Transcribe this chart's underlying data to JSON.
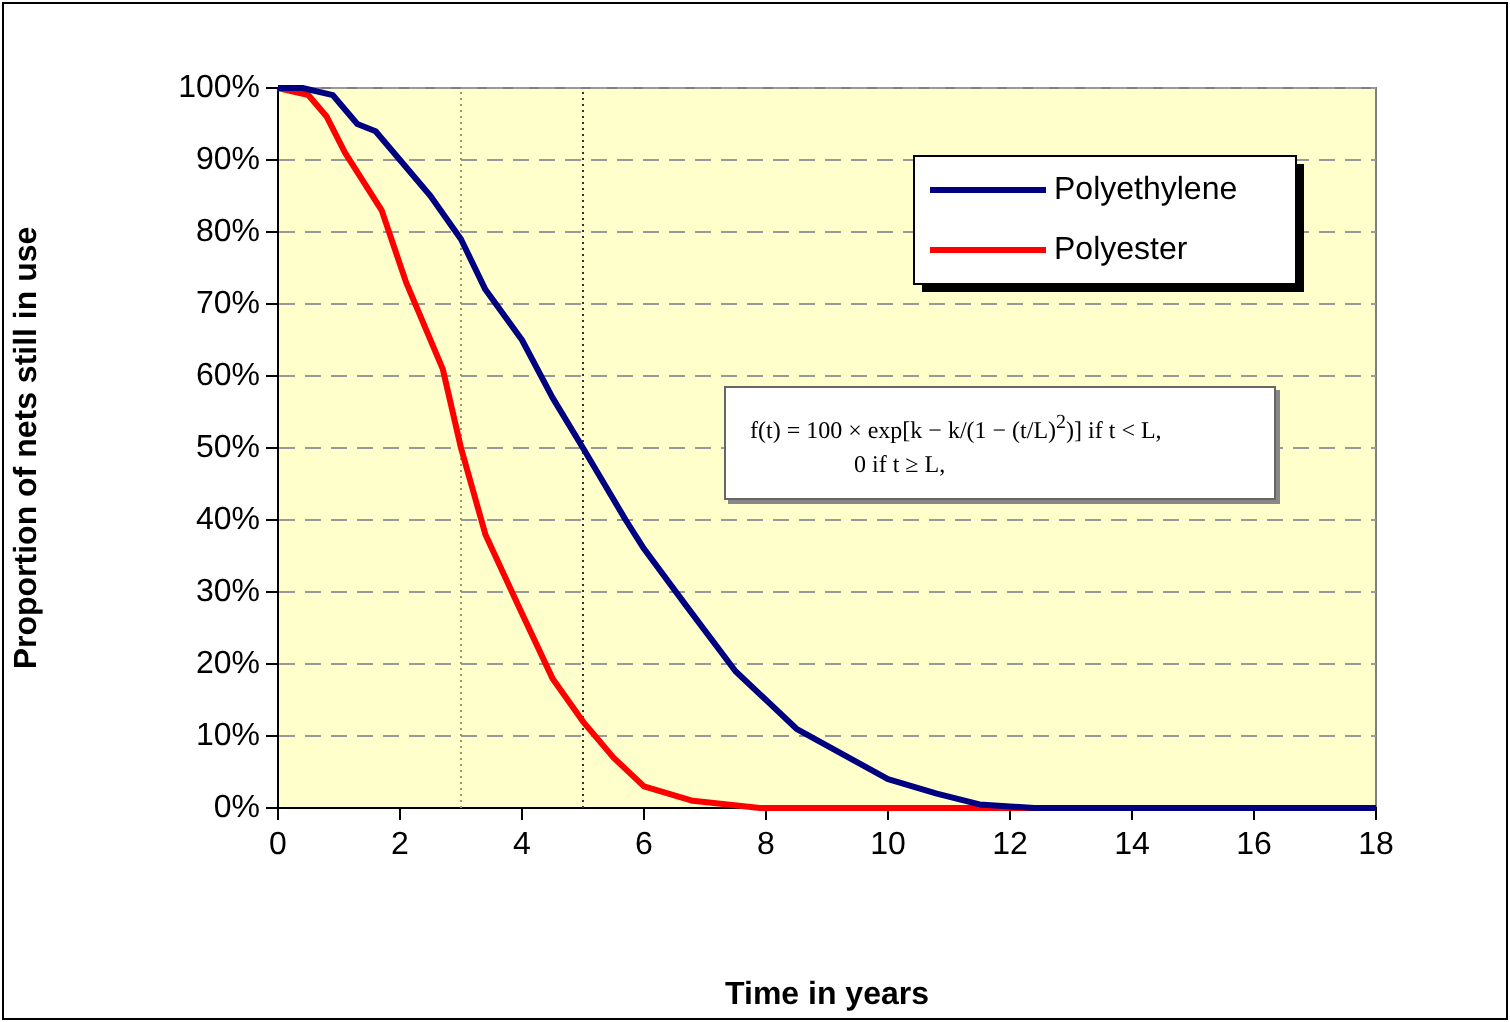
{
  "chart_data": {
    "type": "line",
    "xlabel": "Time in years",
    "ylabel": "Proportion of nets still in use",
    "xlim": [
      0,
      18
    ],
    "xticks": [
      0,
      2,
      4,
      6,
      8,
      10,
      12,
      14,
      16,
      18
    ],
    "ylim": [
      0,
      100
    ],
    "yticks": [
      {
        "value": 0,
        "label": "0%"
      },
      {
        "value": 10,
        "label": "10%"
      },
      {
        "value": 20,
        "label": "20%"
      },
      {
        "value": 30,
        "label": "30%"
      },
      {
        "value": 40,
        "label": "40%"
      },
      {
        "value": 50,
        "label": "50%"
      },
      {
        "value": 60,
        "label": "60%"
      },
      {
        "value": 70,
        "label": "70%"
      },
      {
        "value": 80,
        "label": "80%"
      },
      {
        "value": 90,
        "label": "90%"
      },
      {
        "value": 100,
        "label": "100%"
      }
    ],
    "series": [
      {
        "name": "Polyethylene",
        "color": "#000080",
        "x": [
          0,
          0.4,
          0.9,
          1.3,
          1.6,
          2,
          2.5,
          3,
          3.4,
          4,
          4.5,
          5,
          5.7,
          6,
          6.7,
          7.5,
          8.5,
          10,
          10.8,
          11.5,
          12.4,
          18
        ],
        "values": [
          100,
          100,
          99,
          95,
          94,
          90,
          85,
          79,
          72,
          65,
          57,
          50,
          40,
          36,
          28,
          19,
          11,
          4,
          2,
          0.5,
          0,
          0
        ]
      },
      {
        "name": "Polyester",
        "color": "#ff0000",
        "x": [
          0,
          0.5,
          0.8,
          1.1,
          1.7,
          2.1,
          2.7,
          3,
          3.4,
          4,
          4.5,
          5,
          5.5,
          6,
          6.8,
          7.9,
          18
        ],
        "values": [
          100,
          99,
          96,
          91,
          83,
          73,
          61,
          50,
          38,
          27,
          18,
          12,
          7,
          3,
          1,
          0,
          0
        ]
      }
    ],
    "ref_lines": [
      {
        "axis": "x",
        "value": 3,
        "color": "#999966",
        "line_style": "dotted"
      },
      {
        "axis": "x",
        "value": 5,
        "color": "#333333",
        "line_style": "dotted"
      }
    ],
    "annotations": [
      "f(t) = 100 × exp[k − k/(1 − (t/L)$^{2}$)]   if t < L,",
      "0   if t ≥ L,"
    ],
    "grid": "y",
    "legend": "top right",
    "marker": "none",
    "line_style": "solid"
  }
}
